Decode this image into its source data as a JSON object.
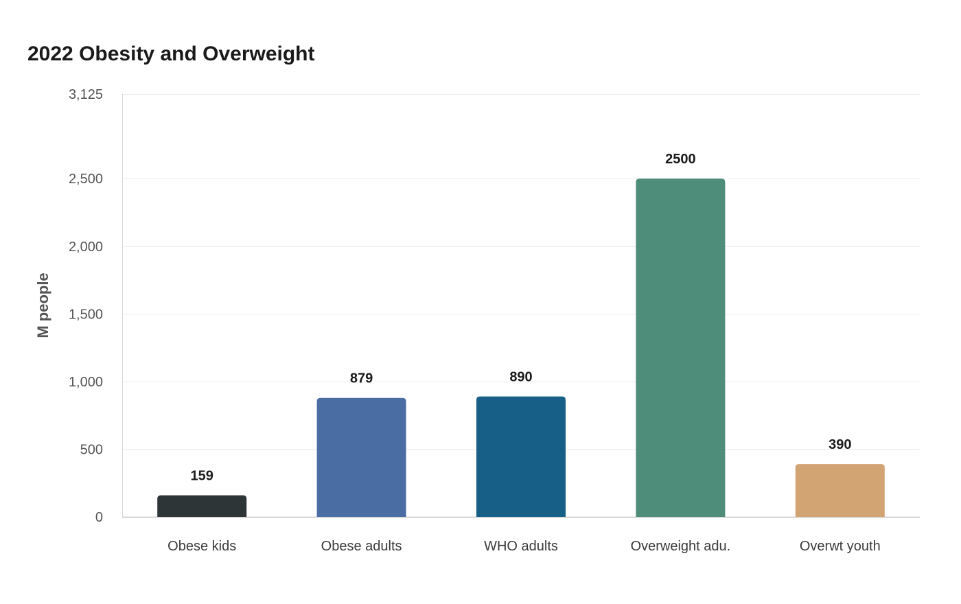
{
  "chart_data": {
    "type": "bar",
    "title": "2022 Obesity and Overweight",
    "xlabel": "",
    "ylabel": "M people",
    "categories": [
      "Obese kids",
      "Obese adults",
      "WHO adults",
      "Overweight adu.",
      "Overwt youth"
    ],
    "values": [
      159,
      879,
      890,
      2500,
      390
    ],
    "data_labels": [
      "159",
      "879",
      "890",
      "2500",
      "390"
    ],
    "colors": [
      "#2e3537",
      "#4a6ea3",
      "#185f87",
      "#4f8d7b",
      "#d2a373"
    ],
    "yticks": [
      0,
      500,
      1000,
      1500,
      2000,
      2500,
      3125
    ],
    "ytick_labels": [
      "0",
      "500",
      "1,000",
      "1,500",
      "2,000",
      "2,500",
      "3,125"
    ],
    "ylim": [
      0,
      3125
    ],
    "grid": true,
    "legend": "none"
  }
}
